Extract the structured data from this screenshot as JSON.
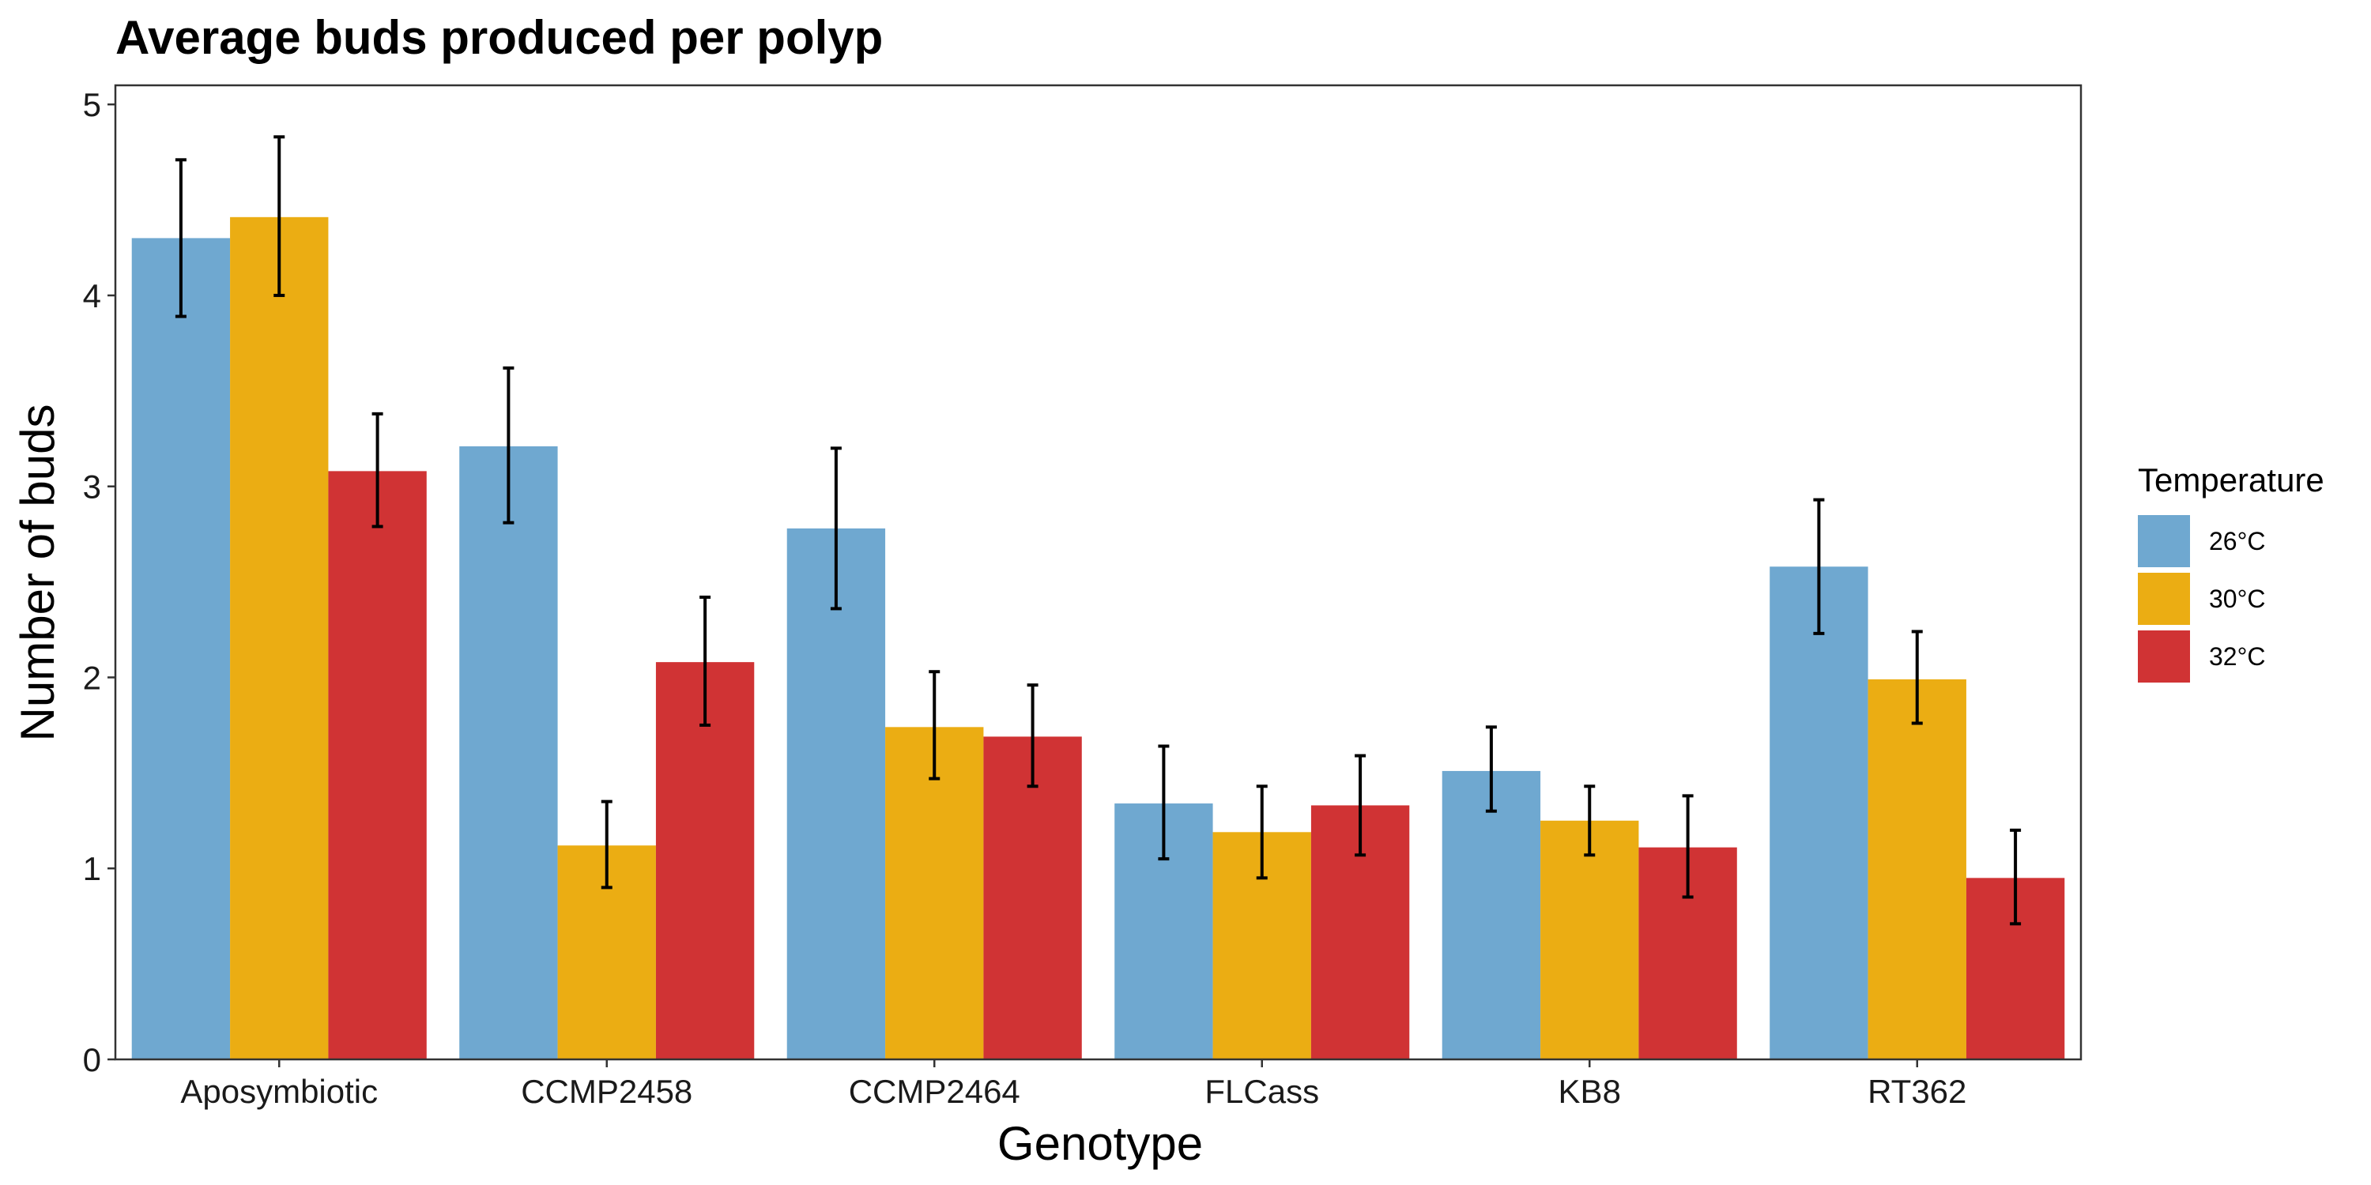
{
  "chart_data": {
    "type": "bar",
    "title": "Average buds produced per polyp",
    "xlabel": "Genotype",
    "ylabel": "Number of buds",
    "ylim": [
      0,
      5.1
    ],
    "yticks": [
      "0",
      "1",
      "2",
      "3",
      "4",
      "5"
    ],
    "categories": [
      "Aposymbiotic",
      "CCMP2458",
      "CCMP2464",
      "FLCass",
      "KB8",
      "RT362"
    ],
    "legend": {
      "title": "Temperature",
      "position": "right"
    },
    "grid": false,
    "series": [
      {
        "name": "26°C",
        "color": "#6fa8d0",
        "values": [
          4.3,
          3.21,
          2.78,
          1.34,
          1.51,
          2.58
        ],
        "err_low": [
          3.89,
          2.81,
          2.36,
          1.05,
          1.3,
          2.23
        ],
        "err_high": [
          4.71,
          3.62,
          3.2,
          1.64,
          1.74,
          2.93
        ]
      },
      {
        "name": "30°C",
        "color": "#ebad13",
        "values": [
          4.41,
          1.12,
          1.74,
          1.19,
          1.25,
          1.99
        ],
        "err_low": [
          4.0,
          0.9,
          1.47,
          0.95,
          1.07,
          1.76
        ],
        "err_high": [
          4.83,
          1.35,
          2.03,
          1.43,
          1.43,
          2.24
        ]
      },
      {
        "name": "32°C",
        "color": "#d03334",
        "values": [
          3.08,
          2.08,
          1.69,
          1.33,
          1.11,
          0.95
        ],
        "err_low": [
          2.79,
          1.75,
          1.43,
          1.07,
          0.85,
          0.71
        ],
        "err_high": [
          3.38,
          2.42,
          1.96,
          1.59,
          1.38,
          1.2
        ]
      }
    ]
  }
}
